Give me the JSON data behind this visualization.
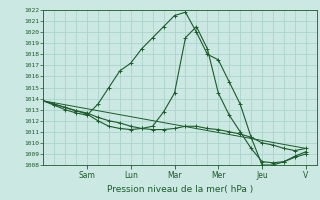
{
  "title": "Pression niveau de la mer( hPa )",
  "bg_color": "#cce8e2",
  "grid_color": "#aad4cc",
  "line_color": "#1a5c2a",
  "ylim": [
    1008,
    1022
  ],
  "yticks": [
    1008,
    1009,
    1010,
    1011,
    1012,
    1013,
    1014,
    1015,
    1016,
    1017,
    1018,
    1019,
    1020,
    1021,
    1022
  ],
  "day_labels": [
    "Sam",
    "Lun",
    "Mar",
    "Mer",
    "Jeu",
    "V"
  ],
  "day_positions": [
    2.0,
    4.0,
    6.0,
    8.0,
    10.0,
    12.0
  ],
  "xlim": [
    0,
    12.5
  ],
  "series": [
    {
      "x": [
        0,
        0.5,
        1.0,
        1.5,
        2.0,
        2.5,
        3.0,
        3.5,
        4.0,
        4.5,
        5.0,
        5.5,
        6.0,
        6.5,
        7.0,
        7.5,
        8.0,
        8.5,
        9.0,
        9.5,
        10.0,
        10.5,
        11.0,
        11.5,
        12.0
      ],
      "y": [
        1013.8,
        1013.4,
        1013.0,
        1012.7,
        1012.5,
        1013.5,
        1015.0,
        1016.5,
        1017.2,
        1018.5,
        1019.5,
        1020.5,
        1021.5,
        1021.8,
        1020.0,
        1018.0,
        1017.5,
        1015.5,
        1013.5,
        1010.5,
        1008.0,
        1008.0,
        1008.3,
        1008.8,
        1009.2
      ]
    },
    {
      "x": [
        0,
        0.5,
        1.0,
        1.5,
        2.0,
        2.5,
        3.0,
        3.5,
        4.0,
        4.5,
        5.0,
        5.5,
        6.0,
        6.5,
        7.0,
        7.5,
        8.0,
        8.5,
        9.0,
        9.5,
        10.0,
        10.5,
        11.0,
        11.5,
        12.0
      ],
      "y": [
        1013.8,
        1013.5,
        1013.2,
        1012.9,
        1012.6,
        1012.0,
        1011.5,
        1011.3,
        1011.2,
        1011.3,
        1011.5,
        1012.8,
        1014.5,
        1019.5,
        1020.5,
        1018.5,
        1014.5,
        1012.5,
        1011.0,
        1009.5,
        1008.3,
        1008.2,
        1008.3,
        1008.7,
        1009.0
      ]
    },
    {
      "x": [
        0,
        0.5,
        1.0,
        1.5,
        2.0,
        2.5,
        3.0,
        3.5,
        4.0,
        4.5,
        5.0,
        5.5,
        6.0,
        6.5,
        7.0,
        7.5,
        8.0,
        8.5,
        9.0,
        9.5,
        10.0,
        10.5,
        11.0,
        11.5,
        12.0
      ],
      "y": [
        1013.8,
        1013.5,
        1013.2,
        1012.9,
        1012.7,
        1012.3,
        1012.0,
        1011.8,
        1011.5,
        1011.3,
        1011.2,
        1011.2,
        1011.3,
        1011.5,
        1011.5,
        1011.3,
        1011.2,
        1011.0,
        1010.8,
        1010.5,
        1010.0,
        1009.8,
        1009.5,
        1009.3,
        1009.5
      ]
    },
    {
      "x": [
        0,
        12.0
      ],
      "y": [
        1013.8,
        1009.5
      ]
    }
  ]
}
